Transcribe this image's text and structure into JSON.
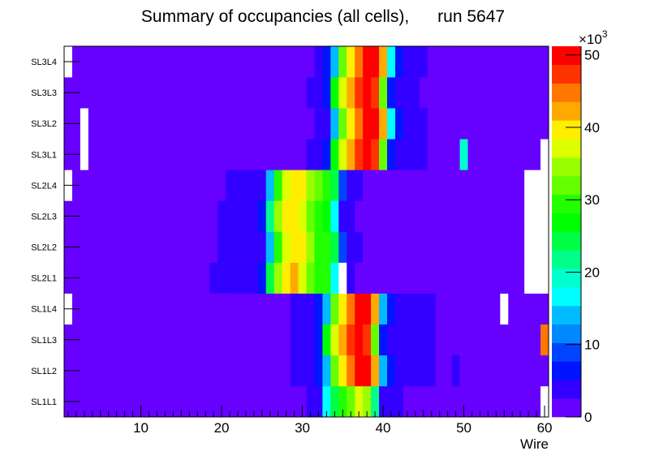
{
  "chart_data": {
    "type": "heatmap",
    "title": "Summary of occupancies (all cells),      run 5647",
    "xlabel": "Wire",
    "ylabel": "",
    "xlim": [
      0.5,
      60.5
    ],
    "x_ticks": [
      "10",
      "20",
      "30",
      "40",
      "50",
      "60"
    ],
    "x_tick_values": [
      10,
      20,
      30,
      40,
      50,
      60
    ],
    "y_categories": [
      "SL1L1",
      "SL1L2",
      "SL1L3",
      "SL1L4",
      "SL2L1",
      "SL2L2",
      "SL2L3",
      "SL2L4",
      "SL3L1",
      "SL3L2",
      "SL3L3",
      "SL3L4"
    ],
    "z_range": [
      0,
      51200
    ],
    "z_levels": 20,
    "z_ticks": [
      "0",
      "10",
      "20",
      "30",
      "40",
      "50"
    ],
    "z_tick_values": [
      0,
      10000,
      20000,
      30000,
      40000,
      50000
    ],
    "z_multiplier": "×10",
    "z_multiplier_exp": "3",
    "palette": [
      "#6600ff",
      "#3300ff",
      "#0014ff",
      "#0044ff",
      "#0088ff",
      "#00bbff",
      "#00ffff",
      "#00ffcc",
      "#00ff88",
      "#00ff44",
      "#00ff00",
      "#22ff00",
      "#66ff00",
      "#99ff00",
      "#ddff00",
      "#ffee00",
      "#ffaa00",
      "#ff7700",
      "#ff3300",
      "#ff0000"
    ],
    "empty_color": "#ffffff",
    "base_value": 2000,
    "rows": {
      "SL3L4": [
        [
          1,
          1,
          0
        ],
        [
          32,
          32,
          3800
        ],
        [
          33,
          33,
          6400
        ],
        [
          34,
          34,
          14100
        ],
        [
          35,
          35,
          32000
        ],
        [
          36,
          36,
          39700
        ],
        [
          37,
          37,
          44800
        ],
        [
          38,
          39,
          49900
        ],
        [
          40,
          40,
          42200
        ],
        [
          41,
          41,
          16600
        ],
        [
          42,
          42,
          6400
        ],
        [
          43,
          45,
          3800
        ]
      ],
      "SL3L3": [
        [
          31,
          32,
          3800
        ],
        [
          33,
          33,
          6400
        ],
        [
          34,
          34,
          26900
        ],
        [
          35,
          35,
          37100
        ],
        [
          36,
          36,
          42200
        ],
        [
          37,
          37,
          47400
        ],
        [
          38,
          38,
          49900
        ],
        [
          39,
          39,
          47400
        ],
        [
          40,
          40,
          32000
        ],
        [
          41,
          41,
          6400
        ],
        [
          42,
          44,
          3800
        ]
      ],
      "SL3L2": [
        [
          3,
          3,
          0
        ],
        [
          32,
          33,
          3800
        ],
        [
          34,
          34,
          14100
        ],
        [
          35,
          35,
          32000
        ],
        [
          36,
          36,
          39700
        ],
        [
          37,
          37,
          44800
        ],
        [
          38,
          39,
          49900
        ],
        [
          40,
          40,
          42200
        ],
        [
          41,
          41,
          16600
        ],
        [
          42,
          42,
          6400
        ],
        [
          43,
          45,
          3800
        ]
      ],
      "SL3L1": [
        [
          3,
          3,
          0
        ],
        [
          31,
          32,
          3800
        ],
        [
          33,
          33,
          6400
        ],
        [
          34,
          34,
          26900
        ],
        [
          35,
          35,
          37100
        ],
        [
          36,
          36,
          42200
        ],
        [
          37,
          37,
          47400
        ],
        [
          38,
          38,
          49900
        ],
        [
          39,
          39,
          47400
        ],
        [
          40,
          40,
          32000
        ],
        [
          41,
          41,
          6400
        ],
        [
          42,
          45,
          3800
        ],
        [
          50,
          50,
          19200
        ],
        [
          60,
          60,
          0
        ]
      ],
      "SL2L4": [
        [
          1,
          1,
          0
        ],
        [
          21,
          25,
          3800
        ],
        [
          26,
          26,
          14100
        ],
        [
          27,
          27,
          29400
        ],
        [
          28,
          28,
          37100
        ],
        [
          29,
          30,
          39700
        ],
        [
          31,
          31,
          34600
        ],
        [
          32,
          32,
          32000
        ],
        [
          33,
          33,
          29400
        ],
        [
          34,
          34,
          24300
        ],
        [
          35,
          35,
          9000
        ],
        [
          36,
          37,
          3800
        ],
        [
          58,
          60,
          0
        ]
      ],
      "SL2L3": [
        [
          20,
          24,
          3800
        ],
        [
          25,
          25,
          6400
        ],
        [
          26,
          26,
          21800
        ],
        [
          27,
          27,
          34600
        ],
        [
          28,
          29,
          39700
        ],
        [
          30,
          30,
          37100
        ],
        [
          31,
          31,
          32000
        ],
        [
          32,
          32,
          29400
        ],
        [
          33,
          33,
          26900
        ],
        [
          34,
          34,
          16600
        ],
        [
          35,
          36,
          3800
        ],
        [
          58,
          60,
          0
        ]
      ],
      "SL2L2": [
        [
          20,
          25,
          3800
        ],
        [
          26,
          26,
          14100
        ],
        [
          27,
          27,
          29400
        ],
        [
          28,
          28,
          37100
        ],
        [
          29,
          30,
          39700
        ],
        [
          31,
          31,
          34600
        ],
        [
          32,
          33,
          29400
        ],
        [
          34,
          34,
          24300
        ],
        [
          35,
          35,
          9000
        ],
        [
          36,
          37,
          3800
        ],
        [
          58,
          60,
          0
        ]
      ],
      "SL2L1": [
        [
          19,
          24,
          3800
        ],
        [
          25,
          25,
          6400
        ],
        [
          26,
          26,
          24300
        ],
        [
          27,
          27,
          34600
        ],
        [
          28,
          28,
          39700
        ],
        [
          29,
          29,
          42200
        ],
        [
          30,
          30,
          37100
        ],
        [
          31,
          31,
          32000
        ],
        [
          32,
          33,
          29400
        ],
        [
          34,
          34,
          16600
        ],
        [
          35,
          35,
          0
        ],
        [
          36,
          36,
          3800
        ],
        [
          58,
          60,
          0
        ]
      ],
      "SL1L4": [
        [
          1,
          1,
          0
        ],
        [
          29,
          31,
          3800
        ],
        [
          32,
          32,
          6400
        ],
        [
          33,
          33,
          14100
        ],
        [
          34,
          34,
          32000
        ],
        [
          35,
          35,
          39700
        ],
        [
          36,
          36,
          44800
        ],
        [
          37,
          38,
          49900
        ],
        [
          39,
          39,
          42200
        ],
        [
          40,
          40,
          14100
        ],
        [
          41,
          41,
          6400
        ],
        [
          42,
          46,
          3800
        ],
        [
          55,
          55,
          0
        ]
      ],
      "SL1L3": [
        [
          29,
          31,
          3800
        ],
        [
          32,
          32,
          6400
        ],
        [
          33,
          33,
          26900
        ],
        [
          34,
          34,
          37100
        ],
        [
          35,
          35,
          42200
        ],
        [
          36,
          36,
          47400
        ],
        [
          37,
          37,
          49900
        ],
        [
          38,
          38,
          47400
        ],
        [
          39,
          39,
          32000
        ],
        [
          40,
          40,
          6400
        ],
        [
          41,
          46,
          3800
        ],
        [
          60,
          60,
          44800
        ]
      ],
      "SL1L2": [
        [
          29,
          31,
          3800
        ],
        [
          32,
          32,
          6400
        ],
        [
          33,
          33,
          14100
        ],
        [
          34,
          34,
          32000
        ],
        [
          35,
          35,
          39700
        ],
        [
          36,
          36,
          44800
        ],
        [
          37,
          38,
          49900
        ],
        [
          39,
          39,
          42200
        ],
        [
          40,
          40,
          14100
        ],
        [
          41,
          41,
          6400
        ],
        [
          42,
          46,
          3800
        ],
        [
          49,
          49,
          3800
        ]
      ],
      "SL1L1": [
        [
          31,
          32,
          3800
        ],
        [
          33,
          33,
          16600
        ],
        [
          34,
          34,
          24300
        ],
        [
          35,
          35,
          29400
        ],
        [
          36,
          36,
          32000
        ],
        [
          37,
          37,
          37100
        ],
        [
          38,
          38,
          34600
        ],
        [
          39,
          39,
          21800
        ],
        [
          40,
          42,
          3800
        ],
        [
          60,
          60,
          0
        ]
      ]
    }
  }
}
